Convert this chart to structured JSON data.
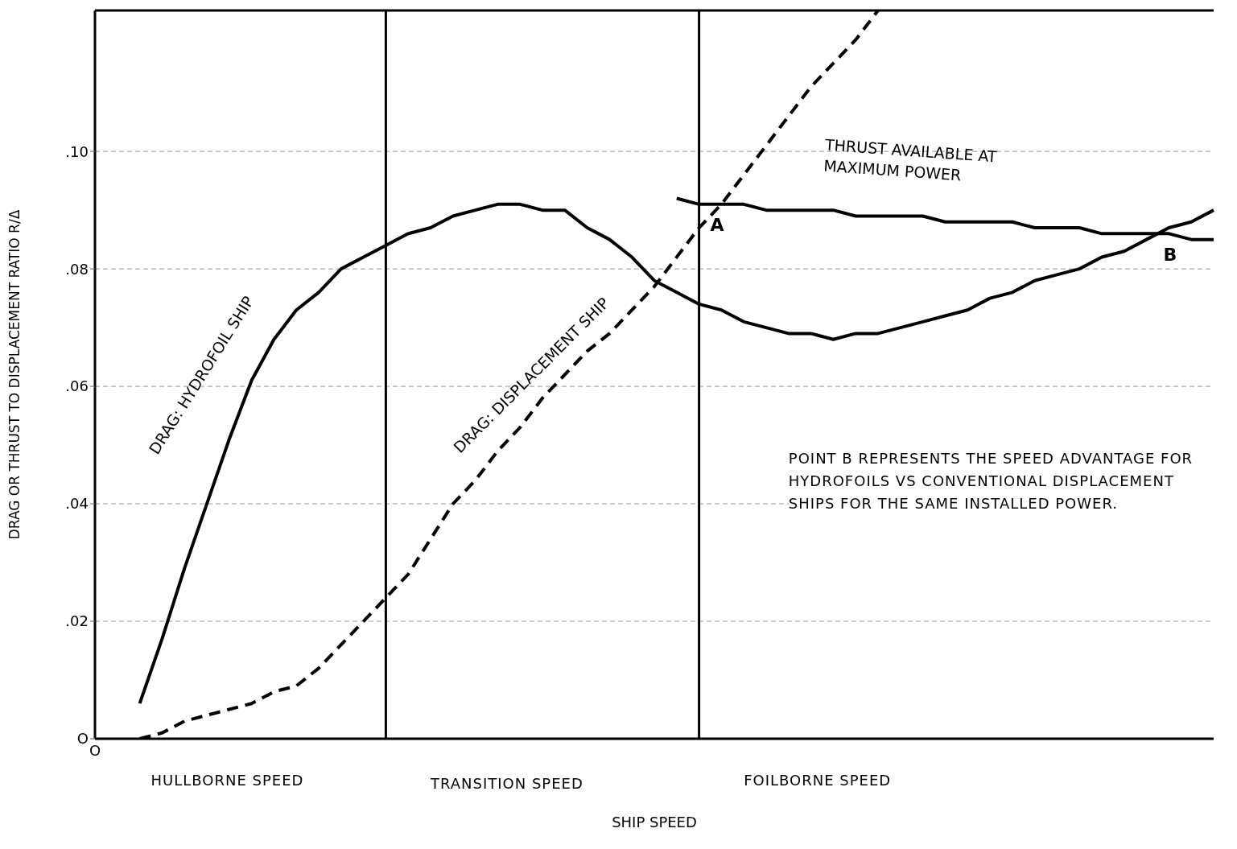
{
  "chart_data": {
    "type": "line",
    "xlabel": "SHIP SPEED",
    "ylabel": "DRAG OR THRUST TO DISPLACEMENT RATIO  R/Δ",
    "categories": [
      "O",
      null,
      null,
      null,
      null,
      null,
      null,
      null,
      null,
      null,
      null,
      null,
      null,
      null,
      null,
      null,
      null,
      null,
      null,
      null,
      null,
      null,
      null,
      null,
      null,
      null,
      null,
      null,
      null,
      null,
      null,
      null,
      null,
      null,
      null,
      null,
      null,
      null,
      null,
      null,
      null,
      null,
      null,
      null,
      null,
      null,
      null,
      null,
      null,
      null,
      null
    ],
    "ylim": [
      0,
      0.124
    ],
    "yticks": [
      {
        "value": 0,
        "label": "O"
      },
      {
        "value": 0.02,
        "label": ".02"
      },
      {
        "value": 0.04,
        "label": ".04"
      },
      {
        "value": 0.06,
        "label": ".06"
      },
      {
        "value": 0.08,
        "label": ".08"
      },
      {
        "value": 0.1,
        "label": ".10"
      }
    ],
    "grid": "y",
    "legend": false,
    "marker": "none",
    "series": [
      {
        "name": "DRAG: HYDROFOIL SHIP",
        "color": "#000000",
        "line_style": "solid",
        "values": [
          null,
          null,
          0.006,
          0.017,
          0.029,
          0.04,
          0.051,
          0.061,
          0.068,
          0.073,
          0.076,
          0.08,
          0.082,
          0.084,
          0.086,
          0.087,
          0.089,
          0.09,
          0.091,
          0.091,
          0.09,
          0.09,
          0.087,
          0.085,
          0.082,
          0.078,
          0.076,
          0.074,
          0.073,
          0.071,
          0.07,
          0.069,
          0.069,
          0.068,
          0.069,
          0.069,
          0.07,
          0.071,
          0.072,
          0.073,
          0.075,
          0.076,
          0.078,
          0.079,
          0.08,
          0.082,
          0.083,
          0.085,
          0.087,
          0.088,
          0.09
        ]
      },
      {
        "name": "DRAG: DISPLACEMENT SHIP",
        "color": "#000000",
        "line_style": "dashed",
        "values": [
          null,
          null,
          0.0,
          0.001,
          0.003,
          0.004,
          0.005,
          0.006,
          0.008,
          0.009,
          0.012,
          0.016,
          0.02,
          0.024,
          0.028,
          0.034,
          0.04,
          0.044,
          0.049,
          0.053,
          0.058,
          0.062,
          0.066,
          0.069,
          0.073,
          0.077,
          0.082,
          0.087,
          0.091,
          0.096,
          0.101,
          0.106,
          0.111,
          0.115,
          0.119,
          0.124,
          null,
          null,
          null,
          null,
          null,
          null,
          null,
          null,
          null,
          null,
          null,
          null,
          null,
          null,
          null
        ]
      },
      {
        "name": "THRUST AVAILABLE AT MAXIMUM POWER",
        "color": "#000000",
        "line_style": "solid",
        "values": [
          null,
          null,
          null,
          null,
          null,
          null,
          null,
          null,
          null,
          null,
          null,
          null,
          null,
          null,
          null,
          null,
          null,
          null,
          null,
          null,
          null,
          null,
          null,
          null,
          null,
          null,
          0.092,
          0.091,
          0.091,
          0.091,
          0.09,
          0.09,
          0.09,
          0.09,
          0.089,
          0.089,
          0.089,
          0.089,
          0.088,
          0.088,
          0.088,
          0.088,
          0.087,
          0.087,
          0.087,
          0.086,
          0.086,
          0.086,
          0.086,
          0.085,
          0.085
        ]
      }
    ],
    "annotations": [
      "A",
      "B",
      "HULLBORNE  SPEED",
      "TRANSITION  SPEED",
      "FOILBORNE  SPEED",
      "POINT B  REPRESENTS THE SPEED ADVANTAGE FOR HYDROFOILS VS CONVENTIONAL DISPLACEMENT SHIPS FOR THE SAME INSTALLED POWER."
    ]
  }
}
